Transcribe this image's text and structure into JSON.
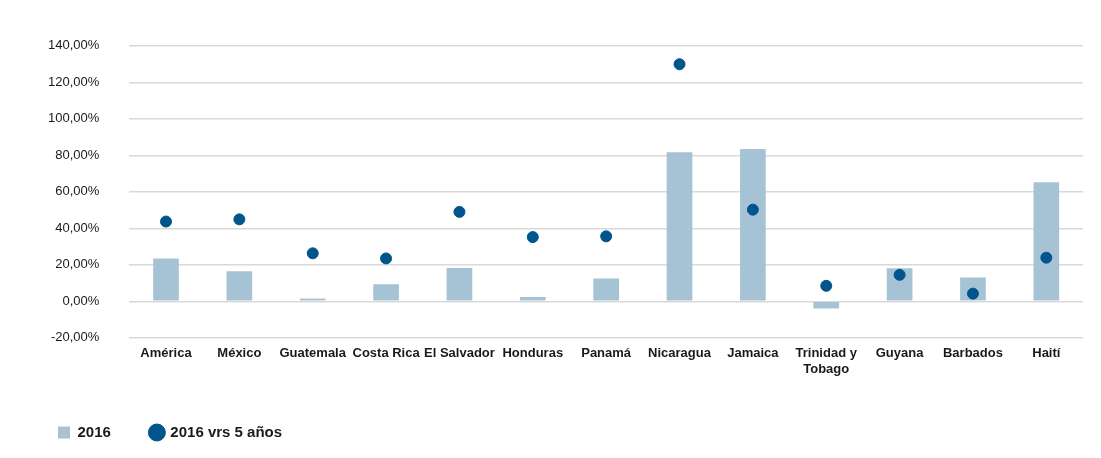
{
  "chart_data": {
    "type": "bar",
    "categories": [
      "América",
      "México",
      "Guatemala",
      "Costa Rica",
      "El Salvador",
      "Honduras",
      "Panamá",
      "Nicaragua",
      "Jamaica",
      "Trinidad y Tobago",
      "Guyana",
      "Barbados",
      "Haití"
    ],
    "series": [
      {
        "name": "2016",
        "color": "#a6c3d6",
        "values": [
          23.5,
          16.4,
          1.6,
          9.3,
          18.2,
          2.4,
          12.5,
          81.7,
          83.4,
          -4.0,
          18.1,
          13.0,
          65.2
        ]
      },
      {
        "name": "2016 vrs 5 años",
        "type": "scatter",
        "color": "#00558c",
        "values": [
          43.7,
          44.9,
          26.3,
          23.5,
          49.0,
          35.2,
          35.6,
          129.9,
          50.2,
          8.5,
          14.5,
          4.2,
          23.9
        ]
      }
    ],
    "ylim": [
      -20,
      140
    ],
    "yticks": [
      {
        "value": -20,
        "label": "-20,00%"
      },
      {
        "value": 0,
        "label": "0,00%"
      },
      {
        "value": 20,
        "label": "20,00%"
      },
      {
        "value": 40,
        "label": "40,00%"
      },
      {
        "value": 60,
        "label": "60,00%"
      },
      {
        "value": 80,
        "label": "80,00%"
      },
      {
        "value": 100,
        "label": "100,00%"
      },
      {
        "value": 120,
        "label": "120,00%"
      },
      {
        "value": 140,
        "label": "140,00%"
      }
    ],
    "grid": "y",
    "legend": "bottom left",
    "marker": "circle"
  }
}
